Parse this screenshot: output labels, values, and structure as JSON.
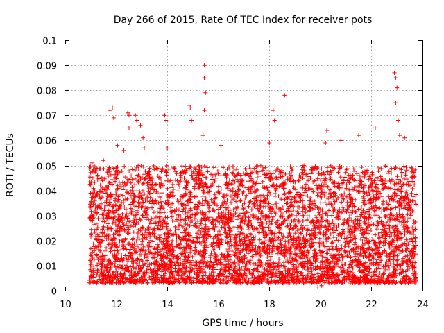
{
  "chart_data": {
    "type": "scatter",
    "title": "Day 266 of 2015, Rate Of TEC Index for receiver pots",
    "xlabel": "GPS time / hours",
    "ylabel": "ROTI / TECUs",
    "xlim": [
      10,
      24
    ],
    "ylim": [
      0,
      0.1
    ],
    "xticks": [
      10,
      12,
      14,
      16,
      18,
      20,
      22,
      24
    ],
    "yticks": [
      0,
      0.01,
      0.02,
      0.03,
      0.04,
      0.05,
      0.06,
      0.07,
      0.08,
      0.09,
      0.1
    ],
    "xtick_labels": [
      "10",
      "12",
      "14",
      "16",
      "18",
      "20",
      "22",
      "24"
    ],
    "ytick_labels": [
      "0",
      "0.01",
      "0.02",
      "0.03",
      "0.04",
      "0.05",
      "0.06",
      "0.07",
      "0.08",
      "0.09",
      "0.1"
    ],
    "grid": true,
    "marker": "+",
    "color": "#ff0000",
    "data_range": {
      "x_min": 10.95,
      "x_max": 23.75
    },
    "dense_band": {
      "y_min": 0.003,
      "y_max": 0.05
    },
    "series": [
      {
        "name": "ROTI",
        "points": [
          [
            11.05,
            0.051
          ],
          [
            11.2,
            0.049
          ],
          [
            11.5,
            0.052
          ],
          [
            11.75,
            0.072
          ],
          [
            11.85,
            0.073
          ],
          [
            11.9,
            0.069
          ],
          [
            12.05,
            0.058
          ],
          [
            12.3,
            0.056
          ],
          [
            12.45,
            0.071
          ],
          [
            12.5,
            0.07
          ],
          [
            12.5,
            0.065
          ],
          [
            12.75,
            0.07
          ],
          [
            12.8,
            0.068
          ],
          [
            12.95,
            0.066
          ],
          [
            13.05,
            0.061
          ],
          [
            13.1,
            0.057
          ],
          [
            13.9,
            0.07
          ],
          [
            13.95,
            0.068
          ],
          [
            14.0,
            0.057
          ],
          [
            14.85,
            0.074
          ],
          [
            14.9,
            0.073
          ],
          [
            14.95,
            0.068
          ],
          [
            15.45,
            0.09
          ],
          [
            15.45,
            0.085
          ],
          [
            15.5,
            0.079
          ],
          [
            15.45,
            0.072
          ],
          [
            15.4,
            0.062
          ],
          [
            16.1,
            0.058
          ],
          [
            18.0,
            0.059
          ],
          [
            18.15,
            0.072
          ],
          [
            18.2,
            0.068
          ],
          [
            18.6,
            0.078
          ],
          [
            20.25,
            0.064
          ],
          [
            20.2,
            0.059
          ],
          [
            20.8,
            0.06
          ],
          [
            21.5,
            0.062
          ],
          [
            22.15,
            0.065
          ],
          [
            22.9,
            0.087
          ],
          [
            22.95,
            0.085
          ],
          [
            23.0,
            0.081
          ],
          [
            22.95,
            0.075
          ],
          [
            23.05,
            0.068
          ],
          [
            23.1,
            0.062
          ],
          [
            23.3,
            0.061
          ],
          [
            19.9,
            0.0015
          ],
          [
            20.05,
            0.002
          ],
          [
            16.8,
            0.003
          ],
          [
            23.7,
            0.005
          ]
        ]
      }
    ]
  }
}
